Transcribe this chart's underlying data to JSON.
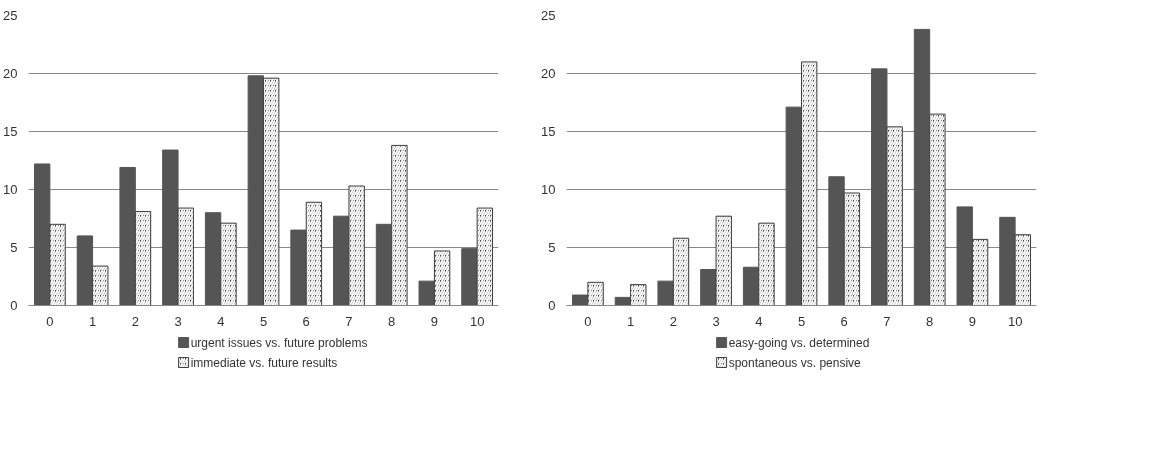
{
  "chart_data": [
    {
      "type": "bar",
      "categories": [
        "0",
        "1",
        "2",
        "3",
        "4",
        "5",
        "6",
        "7",
        "8",
        "9",
        "10"
      ],
      "series": [
        {
          "name": "urgent issues vs. future problems",
          "color": "#555555",
          "values": [
            12.2,
            6.0,
            11.9,
            13.4,
            8.0,
            19.8,
            6.5,
            7.7,
            7.0,
            2.1,
            4.9
          ]
        },
        {
          "name": "immediate vs. future results",
          "color": "#404040",
          "values": [
            7.0,
            3.4,
            8.1,
            8.4,
            7.1,
            19.6,
            8.9,
            10.3,
            13.8,
            4.7,
            8.4
          ]
        }
      ],
      "ylim": [
        0,
        25
      ],
      "yticks": [
        0,
        5,
        10,
        15,
        20,
        25
      ],
      "grid": "y",
      "legend": "bottom"
    },
    {
      "type": "bar",
      "categories": [
        "0",
        "1",
        "2",
        "3",
        "4",
        "5",
        "6",
        "7",
        "8",
        "9",
        "10"
      ],
      "series": [
        {
          "name": "easy-going vs. determined",
          "color": "#555555",
          "values": [
            0.9,
            0.7,
            2.1,
            3.1,
            3.3,
            17.1,
            11.1,
            20.4,
            23.8,
            8.5,
            7.6
          ]
        },
        {
          "name": "spontaneous vs. pensive",
          "color": "#404040",
          "values": [
            2.0,
            1.8,
            5.8,
            7.7,
            7.1,
            21.0,
            9.7,
            15.4,
            16.5,
            5.7,
            6.1
          ]
        }
      ],
      "ylim": [
        0,
        25
      ],
      "yticks": [
        0,
        5,
        10,
        15,
        20,
        25
      ],
      "grid": "y",
      "legend": "bottom"
    }
  ]
}
